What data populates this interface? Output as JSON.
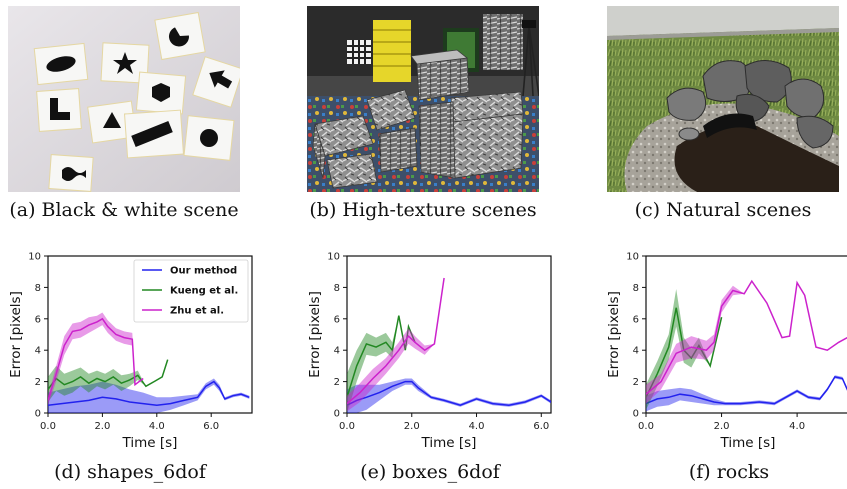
{
  "photos": [
    {
      "id": "a",
      "caption": "(a) Black & white scene"
    },
    {
      "id": "b",
      "caption": "(b) High-texture scenes"
    },
    {
      "id": "c",
      "caption": "(c) Natural scenes"
    }
  ],
  "colors": {
    "ours": "#2222ee",
    "kueng": "#228822",
    "zhu": "#cc22cc"
  },
  "chart_data": [
    {
      "type": "line",
      "caption": "(d) shapes_6dof",
      "xlabel": "Time [s]",
      "ylabel": "Error [pixels]",
      "xlim": [
        0,
        7.5
      ],
      "ylim": [
        0,
        10
      ],
      "xticks": [
        "0.0",
        "2.0",
        "4.0",
        "6.0"
      ],
      "yticks": [
        "0",
        "2",
        "4",
        "6",
        "8",
        "10"
      ],
      "legend": {
        "placement": "top-right"
      },
      "series": [
        {
          "name": "Our method",
          "color": "#2222ee",
          "x": [
            0,
            0.5,
            1.0,
            1.5,
            2.0,
            2.5,
            3.0,
            3.5,
            4.0,
            4.5,
            5.0,
            5.5,
            5.8,
            6.1,
            6.3,
            6.5,
            6.8,
            7.1,
            7.4
          ],
          "y": [
            0.5,
            0.6,
            0.7,
            0.8,
            1.0,
            0.9,
            0.7,
            0.6,
            0.5,
            0.6,
            0.8,
            1.0,
            1.7,
            2.0,
            1.6,
            0.9,
            1.1,
            1.2,
            1.0
          ],
          "band": [
            0.8,
            0.9,
            1.0,
            1.0,
            1.0,
            0.9,
            0.8,
            0.7,
            0.5,
            0.4,
            0.3,
            0.2,
            0.2,
            0.2,
            0.2,
            0.1,
            0.1,
            0.1,
            0.1
          ]
        },
        {
          "name": "Kueng et al.",
          "color": "#228822",
          "x": [
            0,
            0.3,
            0.6,
            0.9,
            1.2,
            1.5,
            1.8,
            2.1,
            2.4,
            2.7,
            3.0,
            3.3,
            3.6,
            3.9,
            4.2,
            4.4
          ],
          "y": [
            1.5,
            2.2,
            1.8,
            2.0,
            2.3,
            1.9,
            2.2,
            2.0,
            2.3,
            1.9,
            2.1,
            2.4,
            1.7,
            2.0,
            2.3,
            3.4
          ],
          "band": [
            0.8,
            0.8,
            0.7,
            0.7,
            0.6,
            0.6,
            0.5,
            0.5,
            0.5,
            0.5,
            0.4,
            0.3,
            0,
            0,
            0,
            0
          ]
        },
        {
          "name": "Zhu et al.",
          "color": "#cc22cc",
          "x": [
            0,
            0.3,
            0.6,
            0.9,
            1.2,
            1.5,
            1.8,
            2.0,
            2.2,
            2.5,
            2.8,
            3.1,
            3.2,
            3.5
          ],
          "y": [
            0.8,
            2.5,
            4.3,
            5.2,
            5.3,
            5.6,
            5.8,
            6.0,
            5.5,
            5.0,
            4.8,
            4.7,
            1.8,
            2.2
          ],
          "band": [
            0.3,
            0.5,
            0.6,
            0.5,
            0.5,
            0.5,
            0.4,
            0.4,
            0.4,
            0.4,
            0.4,
            0.4,
            0,
            0
          ]
        }
      ]
    },
    {
      "type": "line",
      "caption": "(e) boxes_6dof",
      "xlabel": "Time [s]",
      "ylabel": "Error [pixels]",
      "xlim": [
        0,
        6.3
      ],
      "ylim": [
        0,
        10
      ],
      "xticks": [
        "0.0",
        "2.0",
        "4.0",
        "6.0"
      ],
      "yticks": [
        "0",
        "2",
        "4",
        "6",
        "8",
        "10"
      ],
      "series": [
        {
          "name": "Our method",
          "color": "#2222ee",
          "x": [
            0,
            0.3,
            0.6,
            1.0,
            1.4,
            1.8,
            2.0,
            2.2,
            2.6,
            3.0,
            3.5,
            4.0,
            4.5,
            5.0,
            5.5,
            6.0,
            6.3
          ],
          "y": [
            0.5,
            0.8,
            1.0,
            1.3,
            1.7,
            2.0,
            2.0,
            1.6,
            1.0,
            0.8,
            0.5,
            0.9,
            0.6,
            0.5,
            0.7,
            1.1,
            0.7
          ],
          "band": [
            1.0,
            1.0,
            0.8,
            0.5,
            0.3,
            0.2,
            0.2,
            0.2,
            0.1,
            0.1,
            0.1,
            0.1,
            0.1,
            0.1,
            0.1,
            0.1,
            0.1
          ]
        },
        {
          "name": "Kueng et al.",
          "color": "#228822",
          "x": [
            0,
            0.3,
            0.6,
            0.9,
            1.2,
            1.4,
            1.6,
            1.8,
            1.9,
            2.1
          ],
          "y": [
            1.0,
            3.0,
            4.4,
            4.2,
            4.5,
            4.0,
            6.2,
            4.0,
            5.5,
            4.5
          ],
          "band": [
            1.5,
            1.0,
            0.7,
            0.6,
            0.6,
            0.5,
            0,
            0,
            0,
            0
          ]
        },
        {
          "name": "Zhu et al.",
          "color": "#cc22cc",
          "x": [
            0,
            0.4,
            0.8,
            1.2,
            1.6,
            1.9,
            2.1,
            2.4,
            2.7,
            3.0
          ],
          "y": [
            0.6,
            1.3,
            2.2,
            3.0,
            4.0,
            4.9,
            4.5,
            4.0,
            4.4,
            8.6
          ],
          "band": [
            0.5,
            0.6,
            0.6,
            0.5,
            0.5,
            0.5,
            0.4,
            0.3,
            0,
            0
          ]
        }
      ]
    },
    {
      "type": "line",
      "caption": "(f) rocks",
      "xlabel": "Time [s]",
      "ylabel": "Error [pixels]",
      "xlim": [
        0,
        5.4
      ],
      "ylim": [
        0,
        10
      ],
      "xticks": [
        "0.0",
        "2.0",
        "4.0"
      ],
      "yticks": [
        "0",
        "2",
        "4",
        "6",
        "8",
        "10"
      ],
      "series": [
        {
          "name": "Our method",
          "color": "#2222ee",
          "x": [
            0,
            0.3,
            0.6,
            0.9,
            1.2,
            1.5,
            1.8,
            2.1,
            2.5,
            3.0,
            3.4,
            3.7,
            4.0,
            4.3,
            4.6,
            4.8,
            5.0,
            5.2,
            5.4
          ],
          "y": [
            0.6,
            0.9,
            1.0,
            1.2,
            1.1,
            0.9,
            0.7,
            0.6,
            0.6,
            0.7,
            0.6,
            1.0,
            1.4,
            1.0,
            0.9,
            1.5,
            2.3,
            2.2,
            1.1
          ],
          "band": [
            0.5,
            0.5,
            0.5,
            0.4,
            0.4,
            0.3,
            0.2,
            0.1,
            0.1,
            0.1,
            0.1,
            0.1,
            0.1,
            0.1,
            0.1,
            0.1,
            0.1,
            0.1,
            0.1
          ]
        },
        {
          "name": "Kueng et al.",
          "color": "#228822",
          "x": [
            0,
            0.3,
            0.6,
            0.8,
            1.0,
            1.2,
            1.4,
            1.7,
            2.0
          ],
          "y": [
            1.0,
            2.5,
            4.2,
            6.7,
            4.0,
            3.5,
            4.3,
            3.0,
            6.1
          ],
          "band": [
            0.8,
            0.8,
            0.8,
            1.2,
            0.8,
            0.6,
            0.5,
            0,
            0
          ]
        },
        {
          "name": "Zhu et al.",
          "color": "#cc22cc",
          "x": [
            0,
            0.4,
            0.8,
            1.2,
            1.6,
            1.8,
            2.0,
            2.3,
            2.6,
            2.8,
            3.2,
            3.6,
            3.8,
            4.0,
            4.2,
            4.5,
            4.8,
            5.1,
            5.4
          ],
          "y": [
            1.2,
            2.0,
            3.8,
            4.2,
            4.0,
            4.5,
            6.8,
            7.8,
            7.6,
            8.4,
            7.0,
            4.8,
            4.9,
            8.3,
            7.5,
            4.2,
            4.0,
            4.5,
            4.9
          ],
          "band": [
            0.6,
            0.5,
            0.6,
            0.7,
            0.6,
            0.5,
            0.4,
            0.3,
            0,
            0,
            0,
            0,
            0,
            0,
            0,
            0,
            0,
            0,
            0
          ]
        }
      ]
    }
  ]
}
